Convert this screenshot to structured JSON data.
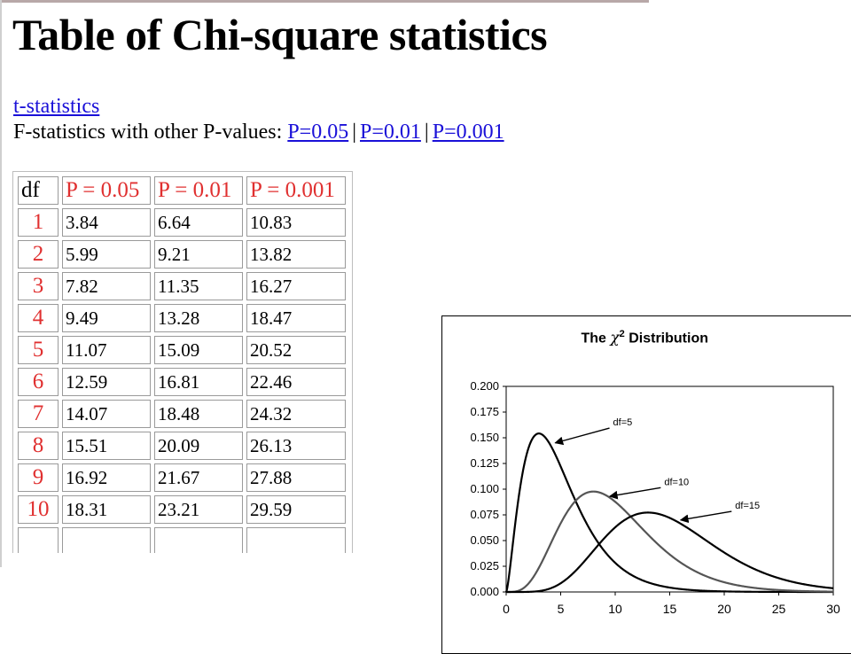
{
  "page": {
    "title": "Table of Chi-square statistics",
    "link_t": "t-statistics",
    "f_prefix": "F-statistics with other P-values: ",
    "link_p05": "P=0.05",
    "link_p01": "P=0.01",
    "link_p001": "P=0.001",
    "separator": "|"
  },
  "table": {
    "headers": [
      "df",
      "P = 0.05",
      "P = 0.01",
      "P = 0.001"
    ],
    "rows": [
      [
        "1",
        "3.84",
        "6.64",
        "10.83"
      ],
      [
        "2",
        "5.99",
        "9.21",
        "13.82"
      ],
      [
        "3",
        "7.82",
        "11.35",
        "16.27"
      ],
      [
        "4",
        "9.49",
        "13.28",
        "18.47"
      ],
      [
        "5",
        "11.07",
        "15.09",
        "20.52"
      ],
      [
        "6",
        "12.59",
        "16.81",
        "22.46"
      ],
      [
        "7",
        "14.07",
        "18.48",
        "24.32"
      ],
      [
        "8",
        "15.51",
        "20.09",
        "26.13"
      ],
      [
        "9",
        "16.92",
        "21.67",
        "27.88"
      ],
      [
        "10",
        "18.31",
        "23.21",
        "29.59"
      ]
    ]
  },
  "chart_data": {
    "type": "line",
    "title_prefix": "The ",
    "title_symbol": "χ",
    "title_sup": "2",
    "title_suffix": " Distribution",
    "xlim": [
      0,
      30
    ],
    "ylim": [
      0,
      0.2
    ],
    "x_ticks": [
      "0",
      "5",
      "10",
      "15",
      "20",
      "25",
      "30"
    ],
    "y_ticks": [
      "0.000",
      "0.025",
      "0.050",
      "0.075",
      "0.100",
      "0.125",
      "0.150",
      "0.175",
      "0.200"
    ],
    "grid": false,
    "series": [
      {
        "name": "df=5",
        "df": 5,
        "color": "#000000"
      },
      {
        "name": "df=10",
        "df": 10,
        "color": "#555555"
      },
      {
        "name": "df=15",
        "df": 15,
        "color": "#000000"
      }
    ],
    "annotations": [
      {
        "text": "df=5",
        "at_x": 4.5,
        "at_y": 0.145,
        "label_x": 9.8,
        "label_y": 0.162
      },
      {
        "text": "df=10",
        "at_x": 9.5,
        "at_y": 0.093,
        "label_x": 14.5,
        "label_y": 0.104
      },
      {
        "text": "df=15",
        "at_x": 16.0,
        "at_y": 0.07,
        "label_x": 21.0,
        "label_y": 0.081
      }
    ]
  }
}
